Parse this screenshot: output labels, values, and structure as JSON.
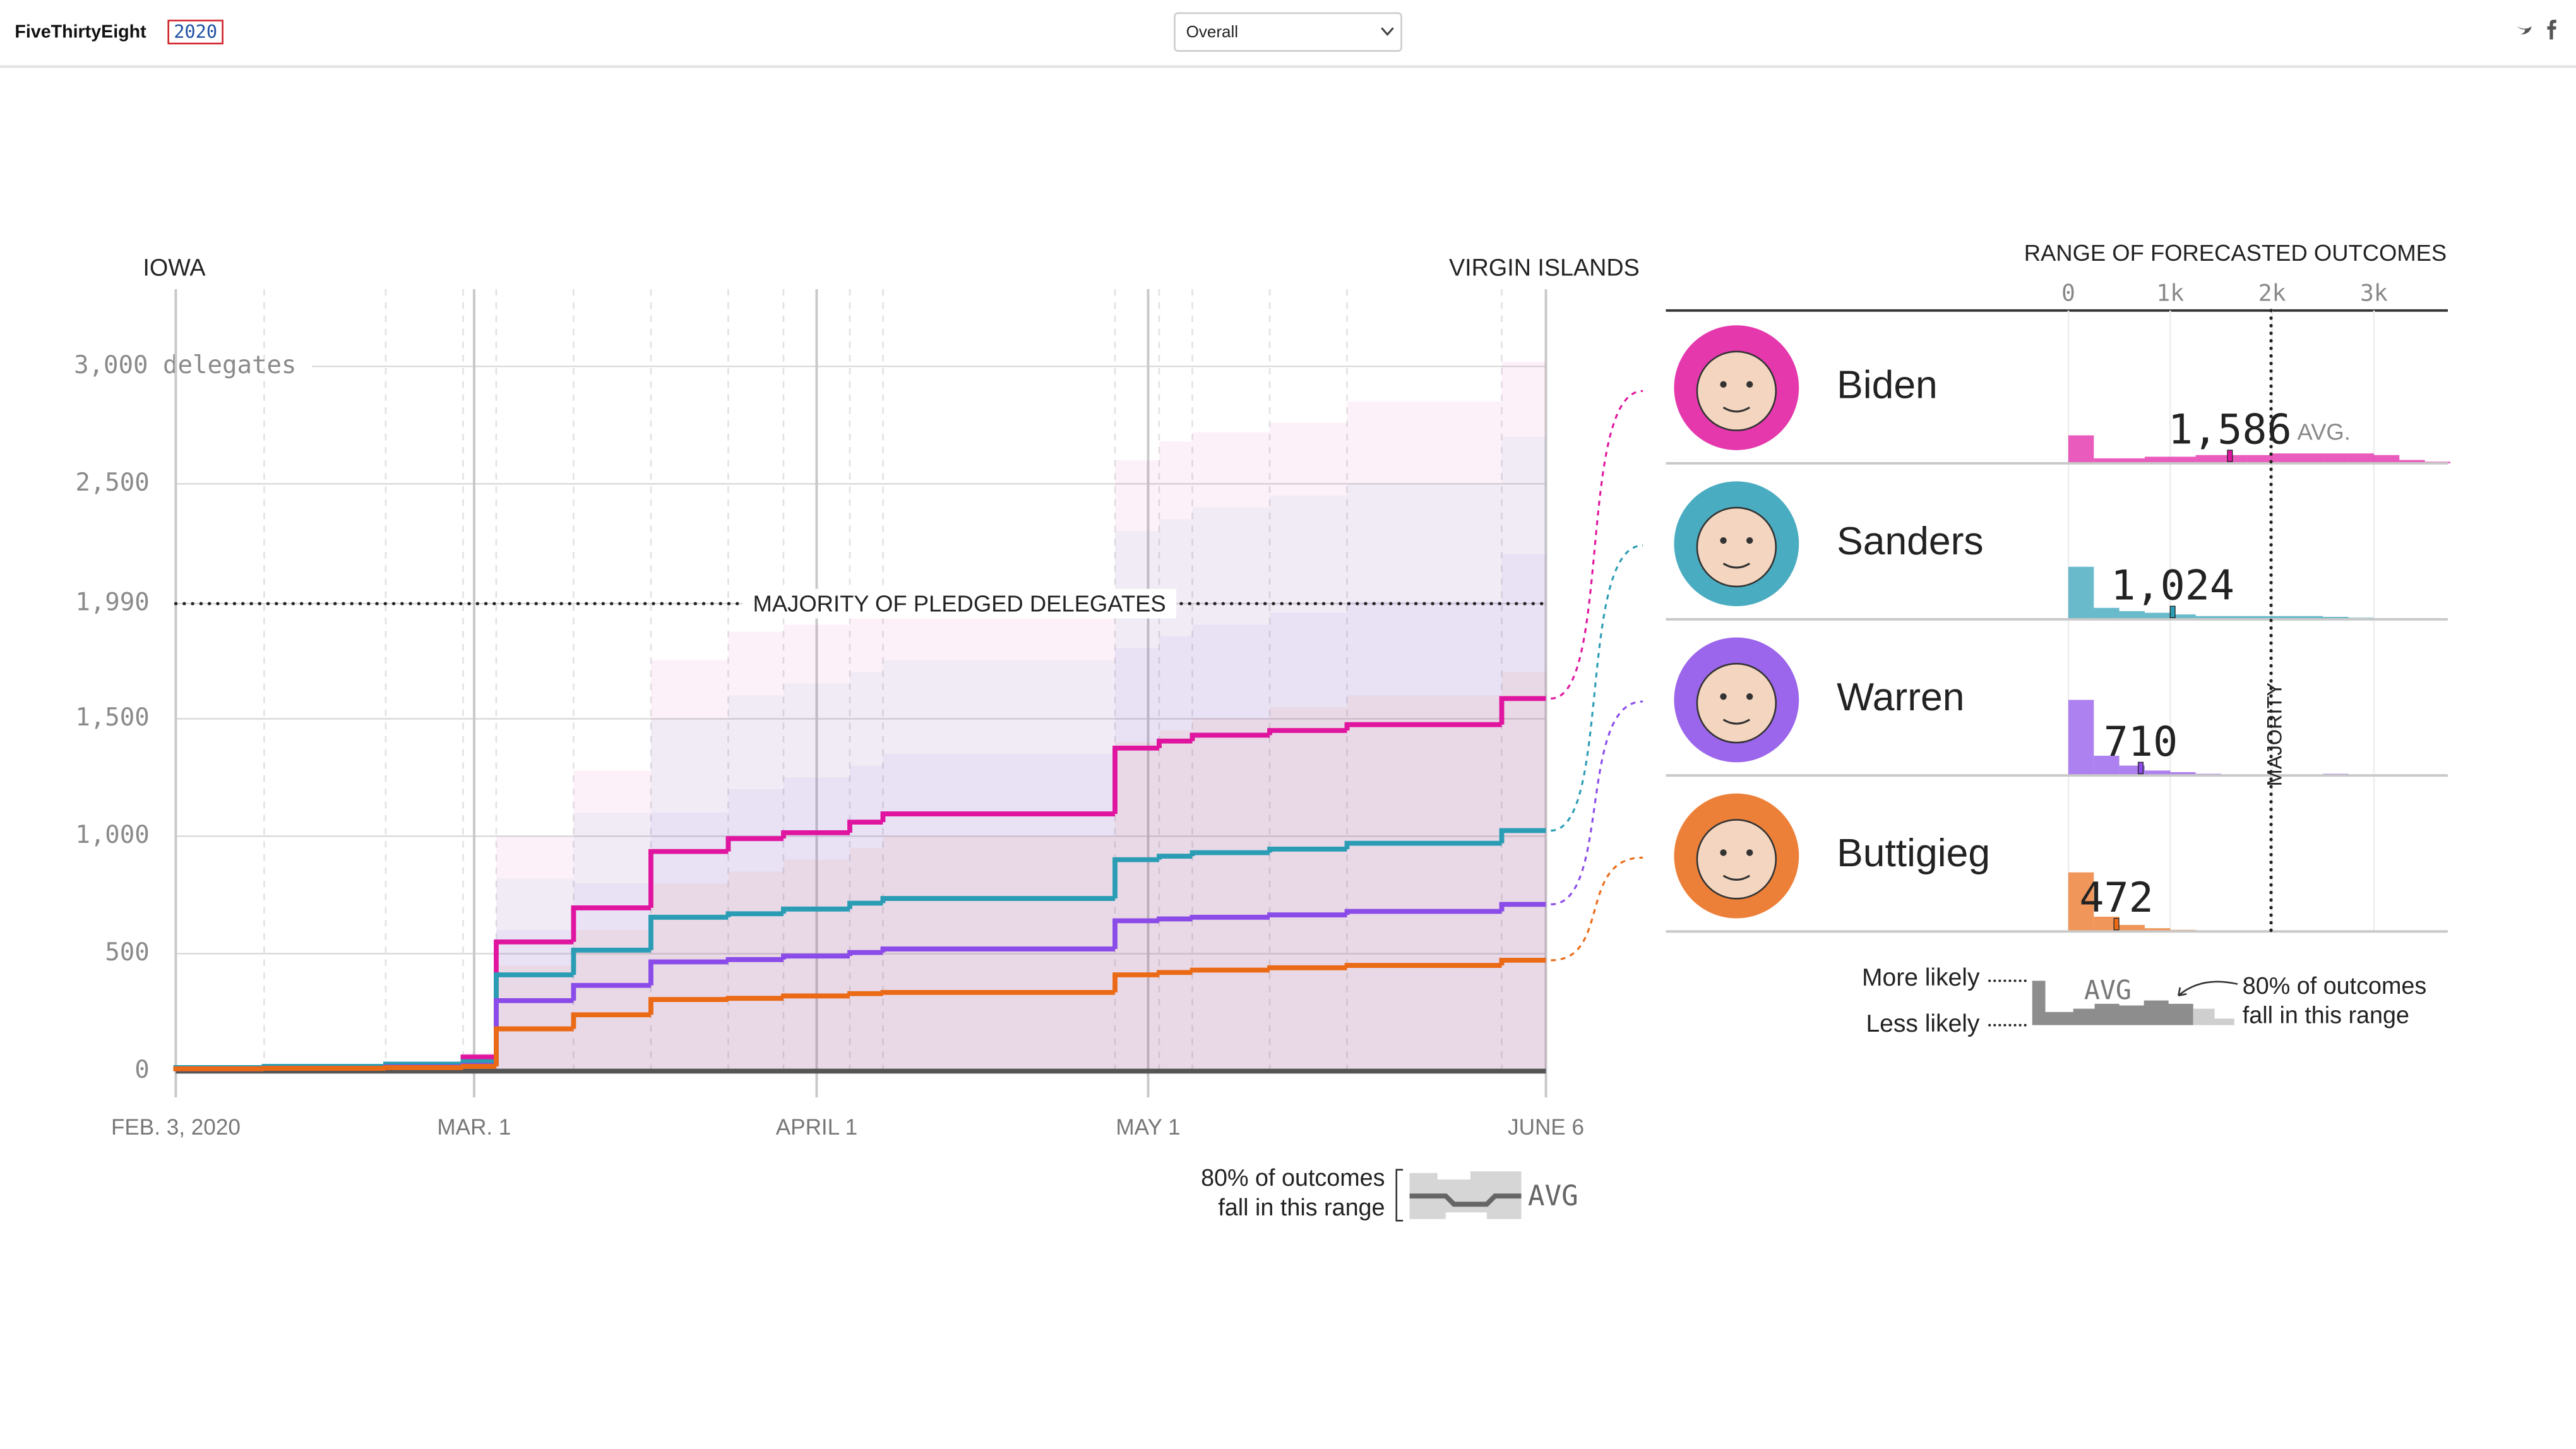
{
  "header": {
    "logo": "FiveThirtyEight",
    "logo_year": "2020",
    "dropdown": "Overall"
  },
  "chart_data": [
    {
      "type": "line",
      "step": true,
      "x": [
        "2020-02-03",
        "2020-02-11",
        "2020-02-22",
        "2020-02-29",
        "2020-03-03",
        "2020-03-10",
        "2020-03-17",
        "2020-03-24",
        "2020-03-29",
        "2020-04-04",
        "2020-04-07",
        "2020-04-28",
        "2020-05-02",
        "2020-05-05",
        "2020-05-12",
        "2020-05-19",
        "2020-06-02"
      ],
      "xlim": [
        "2020-02-03",
        "2020-06-06"
      ],
      "xticks": [
        {
          "value": "2020-02-03",
          "label": "FEB. 3, 2020"
        },
        {
          "value": "2020-03-01",
          "label": "MAR. 1"
        },
        {
          "value": "2020-04-01",
          "label": "APRIL 1"
        },
        {
          "value": "2020-05-01",
          "label": "MAY 1"
        },
        {
          "value": "2020-06-06",
          "label": "JUNE 6"
        }
      ],
      "ylim": [
        0,
        3000
      ],
      "yticks": [
        0,
        500,
        {
          "value": 1000,
          "label": "1,000"
        },
        {
          "value": 1500,
          "label": "1,500"
        },
        {
          "value": 1990,
          "label": "1,990"
        },
        {
          "value": 2500,
          "label": "2,500"
        },
        {
          "value": 3000,
          "label": "3,000 delegates"
        }
      ],
      "grid": true,
      "series": [
        {
          "name": "Biden",
          "color": "#e0159f",
          "values": [
            15,
            17,
            25,
            60,
            550,
            695,
            935,
            990,
            1015,
            1060,
            1095,
            1375,
            1405,
            1430,
            1450,
            1475,
            1586
          ],
          "upper": [
            20,
            25,
            35,
            80,
            1000,
            1280,
            1750,
            1870,
            1900,
            1980,
            2000,
            2600,
            2680,
            2720,
            2760,
            2850,
            3020
          ]
        },
        {
          "name": "Sanders",
          "color": "#2a9db5",
          "values": [
            15,
            20,
            30,
            40,
            410,
            515,
            655,
            670,
            690,
            715,
            735,
            900,
            915,
            930,
            945,
            970,
            1024
          ],
          "upper": [
            18,
            22,
            32,
            50,
            820,
            1100,
            1500,
            1600,
            1650,
            1700,
            1750,
            2300,
            2350,
            2400,
            2450,
            2500,
            2700
          ]
        },
        {
          "name": "Warren",
          "color": "#8a4be8",
          "values": [
            10,
            12,
            18,
            25,
            300,
            365,
            465,
            475,
            490,
            505,
            520,
            640,
            648,
            655,
            665,
            680,
            710
          ],
          "upper": [
            15,
            18,
            25,
            35,
            600,
            800,
            1100,
            1200,
            1250,
            1300,
            1350,
            1800,
            1850,
            1900,
            1950,
            2000,
            2200
          ]
        },
        {
          "name": "Buttigieg",
          "color": "#ea6a16",
          "values": [
            10,
            12,
            15,
            20,
            180,
            240,
            305,
            310,
            320,
            330,
            335,
            410,
            420,
            430,
            440,
            450,
            472
          ],
          "upper": [
            12,
            15,
            20,
            28,
            450,
            600,
            800,
            850,
            900,
            950,
            1000,
            1400,
            1450,
            1500,
            1550,
            1600,
            1700
          ]
        }
      ],
      "annotations": {
        "start": "IOWA",
        "end": "VIRGIN ISLANDS",
        "majority": {
          "value": 1990,
          "label": "MAJORITY OF PLEDGED DELEGATES"
        }
      },
      "key": {
        "range_label": [
          "80% of outcomes",
          "fall in this range"
        ],
        "avg_label": "AVG"
      }
    },
    {
      "type": "histogram",
      "title": "RANGE OF FORECASTED OUTCOMES",
      "bins": [
        0,
        250,
        500,
        750,
        1000,
        1250,
        1500,
        1750,
        2000,
        2250,
        2500,
        2750,
        3000,
        3250,
        3500,
        3750
      ],
      "xlim": [
        0,
        3700
      ],
      "xticks": [
        0,
        {
          "value": 1000,
          "label": "1k"
        },
        {
          "value": 2000,
          "label": "2k"
        },
        {
          "value": 3000,
          "label": "3k"
        }
      ],
      "majority": {
        "value": 1990,
        "label": "MAJORITY"
      },
      "avg_label": "AVG.",
      "series": [
        {
          "name": "Biden",
          "color": "#e0159f",
          "values": [
            17,
            3,
            3,
            4,
            4,
            5,
            5,
            5,
            6,
            6,
            6,
            6,
            5,
            2,
            1
          ],
          "average": 1586,
          "average_label": "1,586"
        },
        {
          "name": "Sanders",
          "color": "#2a9db5",
          "values": [
            32,
            7,
            5,
            4,
            3,
            2,
            2,
            2,
            2,
            2,
            1.5,
            1,
            0.5,
            0,
            0
          ],
          "average": 1024,
          "average_label": "1,024"
        },
        {
          "name": "Warren",
          "color": "#8a4be8",
          "values": [
            46,
            12,
            6,
            3,
            2,
            1,
            0.5,
            0,
            0,
            0,
            1,
            0.5,
            0,
            0,
            0
          ],
          "average": 710
        },
        {
          "name": "Buttigieg",
          "color": "#ea6a16",
          "values": [
            36,
            9,
            4,
            2,
            1,
            0.5,
            0,
            0,
            0,
            0,
            0,
            0,
            0,
            0,
            0
          ],
          "average": 472
        }
      ],
      "key": {
        "more": "More likely",
        "less": "Less likely"
      }
    }
  ]
}
